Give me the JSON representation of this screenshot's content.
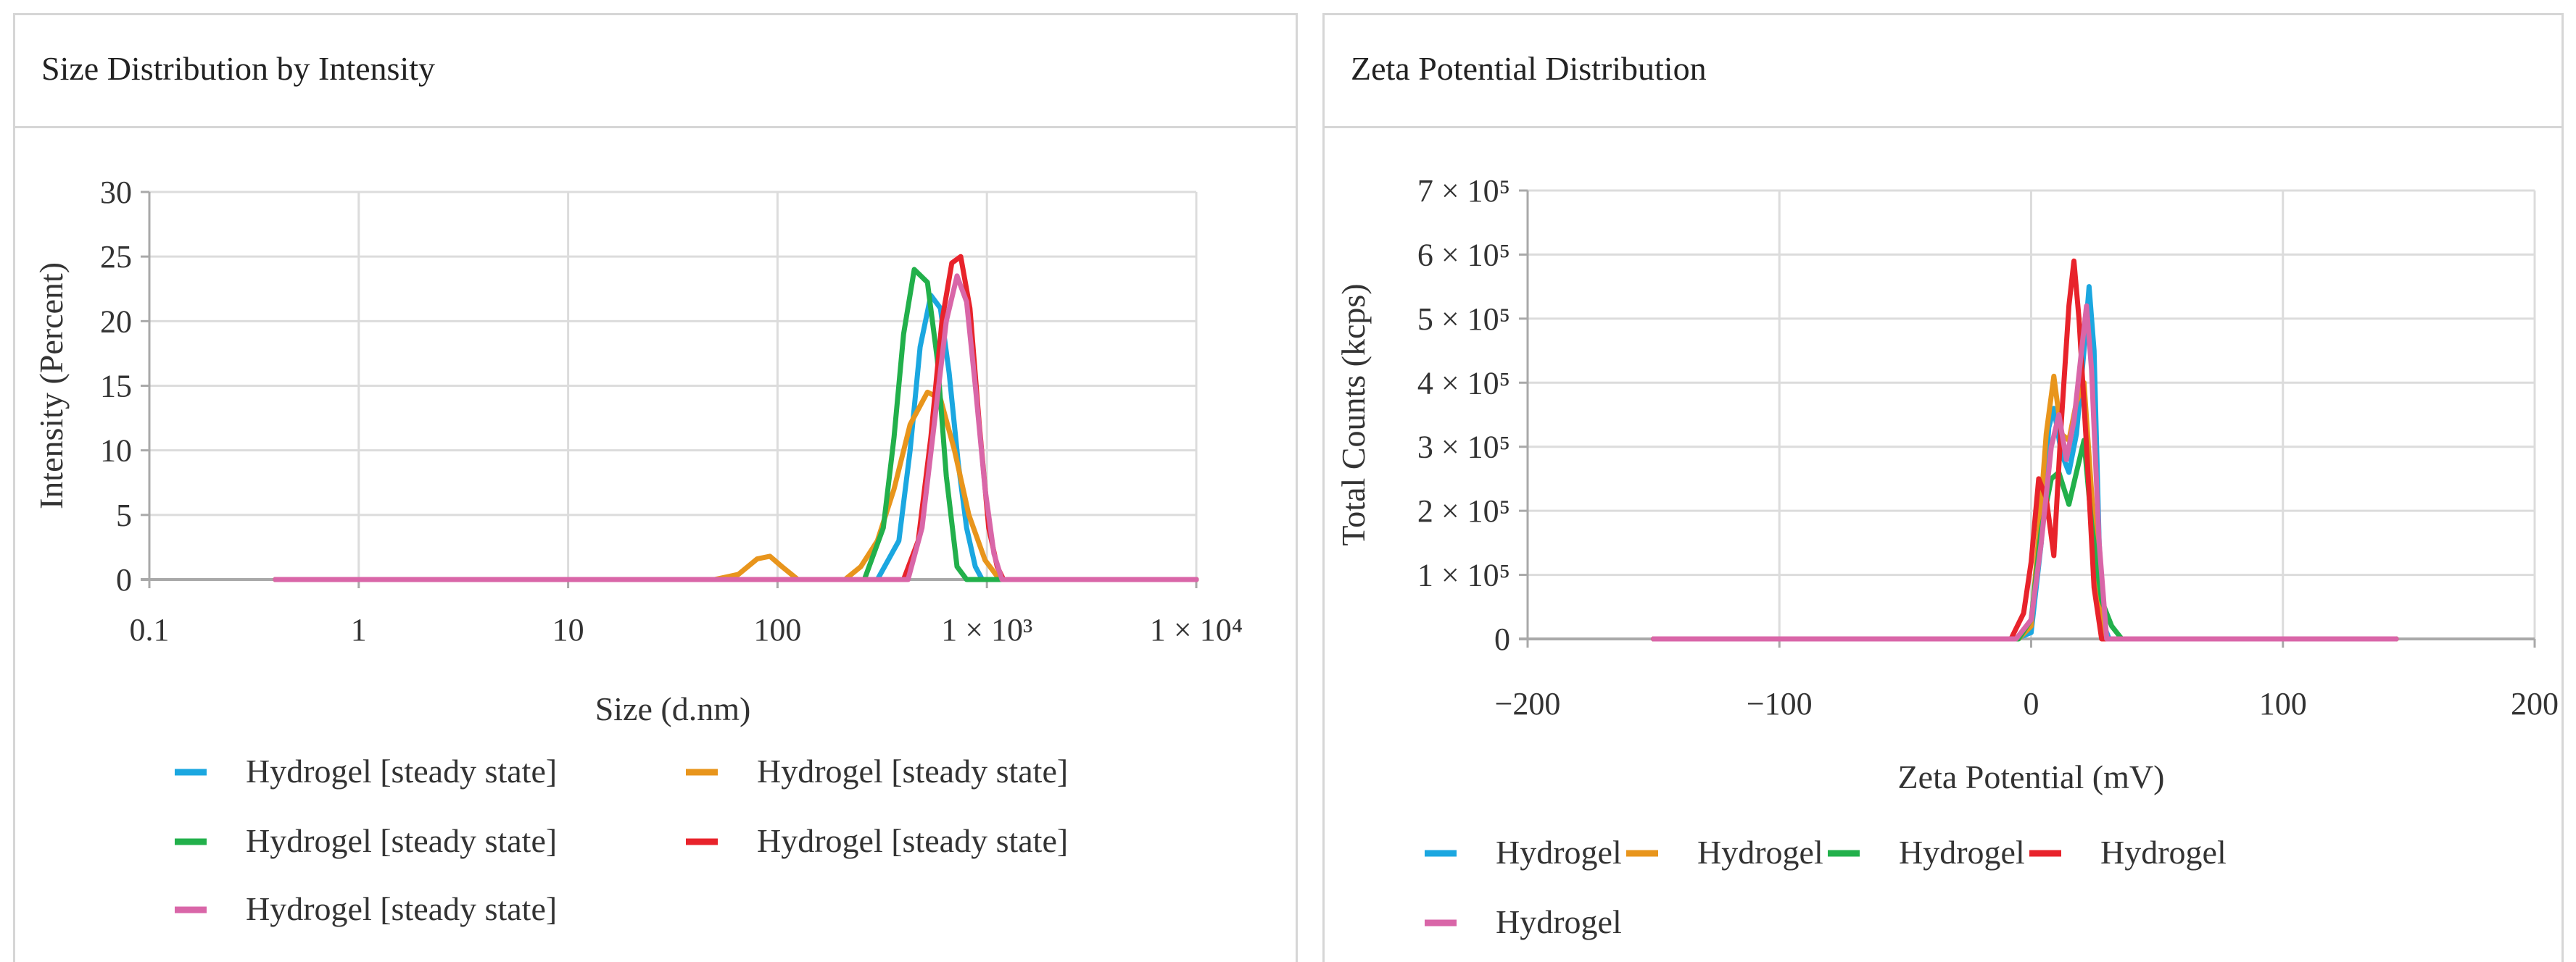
{
  "charts": [
    {
      "panel_title": "Size Distribution by Intensity",
      "chart_data": {
        "type": "line",
        "title": "Size Distribution by Intensity",
        "xlabel": "Size (d.nm)",
        "ylabel": "Intensity (Percent)",
        "x_scale": "log",
        "xlim": [
          0.1,
          10000
        ],
        "ylim": [
          0,
          30
        ],
        "x_ticks": [
          0.1,
          1,
          10,
          100,
          1000,
          10000
        ],
        "x_tick_labels": [
          "0.1",
          "1",
          "10",
          "100",
          "1 × 10³",
          "1 × 10⁴"
        ],
        "y_ticks": [
          0,
          5,
          10,
          15,
          20,
          25,
          30
        ],
        "y_tick_labels": [
          "0",
          "5",
          "10",
          "15",
          "20",
          "25",
          "30"
        ],
        "grid": true,
        "legend_position": "bottom",
        "series": [
          {
            "name": "Hydrogel [steady state]",
            "color": "#1ba7e0",
            "points": [
              [
                0.4,
                0
              ],
              [
                300,
                0
              ],
              [
                380,
                3
              ],
              [
                430,
                10
              ],
              [
                480,
                18
              ],
              [
                540,
                22
              ],
              [
                600,
                21
              ],
              [
                660,
                16
              ],
              [
                730,
                9
              ],
              [
                800,
                4
              ],
              [
                880,
                1
              ],
              [
                950,
                0
              ],
              [
                10000,
                0
              ]
            ]
          },
          {
            "name": "Hydrogel [steady state]",
            "color": "#e8951c",
            "points": [
              [
                0.4,
                0
              ],
              [
                50,
                0
              ],
              [
                65,
                0.4
              ],
              [
                80,
                1.6
              ],
              [
                92,
                1.8
              ],
              [
                105,
                1
              ],
              [
                125,
                0
              ],
              [
                210,
                0
              ],
              [
                250,
                1
              ],
              [
                300,
                3
              ],
              [
                360,
                7
              ],
              [
                430,
                12
              ],
              [
                520,
                14.5
              ],
              [
                600,
                14
              ],
              [
                700,
                10
              ],
              [
                820,
                5
              ],
              [
                980,
                1.5
              ],
              [
                1150,
                0
              ],
              [
                10000,
                0
              ]
            ]
          },
          {
            "name": "Hydrogel [steady state]",
            "color": "#22b04b",
            "points": [
              [
                0.4,
                0
              ],
              [
                260,
                0
              ],
              [
                320,
                4
              ],
              [
                360,
                11
              ],
              [
                400,
                19
              ],
              [
                450,
                24
              ],
              [
                520,
                23
              ],
              [
                580,
                17
              ],
              [
                640,
                8
              ],
              [
                720,
                1
              ],
              [
                800,
                0
              ],
              [
                10000,
                0
              ]
            ]
          },
          {
            "name": "Hydrogel [steady state]",
            "color": "#e8232b",
            "points": [
              [
                0.4,
                0
              ],
              [
                400,
                0
              ],
              [
                470,
                3
              ],
              [
                540,
                11
              ],
              [
                610,
                20
              ],
              [
                680,
                24.5
              ],
              [
                750,
                25
              ],
              [
                830,
                21
              ],
              [
                920,
                12
              ],
              [
                1020,
                4
              ],
              [
                1120,
                1
              ],
              [
                1200,
                0
              ],
              [
                10000,
                0
              ]
            ]
          },
          {
            "name": "Hydrogel [steady state]",
            "color": "#d966a8",
            "points": [
              [
                0.4,
                0
              ],
              [
                420,
                0
              ],
              [
                490,
                4
              ],
              [
                560,
                12
              ],
              [
                640,
                20
              ],
              [
                720,
                23.5
              ],
              [
                800,
                21.5
              ],
              [
                880,
                15
              ],
              [
                980,
                7
              ],
              [
                1080,
                2
              ],
              [
                1180,
                0
              ],
              [
                10000,
                0
              ]
            ]
          }
        ]
      }
    },
    {
      "panel_title": "Zeta Potential Distribution",
      "chart_data": {
        "type": "line",
        "title": "Zeta Potential Distribution",
        "xlabel": "Zeta Potential (mV)",
        "ylabel": "Total Counts (kcps)",
        "xlim": [
          -200,
          200
        ],
        "ylim": [
          0,
          700000
        ],
        "x_ticks": [
          -200,
          -100,
          0,
          100,
          200
        ],
        "x_tick_labels": [
          "−200",
          "−100",
          "0",
          "100",
          "200"
        ],
        "y_ticks": [
          0,
          100000,
          200000,
          300000,
          400000,
          500000,
          600000,
          700000
        ],
        "y_tick_labels": [
          "0",
          "1 × 10⁵",
          "2 × 10⁵",
          "3 × 10⁵",
          "4 × 10⁵",
          "5 × 10⁵",
          "6 × 10⁵",
          "7 × 10⁵"
        ],
        "grid": true,
        "legend_position": "bottom",
        "series": [
          {
            "name": "Hydrogel",
            "color": "#1ba7e0",
            "points": [
              [
                -150,
                0
              ],
              [
                -6,
                0
              ],
              [
                0,
                10000
              ],
              [
                4,
                150000
              ],
              [
                7,
                330000
              ],
              [
                9,
                360000
              ],
              [
                12,
                290000
              ],
              [
                15,
                260000
              ],
              [
                18,
                320000
              ],
              [
                21,
                450000
              ],
              [
                23,
                550000
              ],
              [
                25,
                450000
              ],
              [
                27,
                150000
              ],
              [
                29,
                20000
              ],
              [
                31,
                0
              ],
              [
                145,
                0
              ]
            ]
          },
          {
            "name": "Hydrogel",
            "color": "#e8951c",
            "points": [
              [
                -150,
                0
              ],
              [
                -5,
                0
              ],
              [
                0,
                20000
              ],
              [
                3,
                160000
              ],
              [
                6,
                320000
              ],
              [
                9,
                410000
              ],
              [
                12,
                320000
              ],
              [
                15,
                310000
              ],
              [
                18,
                370000
              ],
              [
                21,
                400000
              ],
              [
                24,
                230000
              ],
              [
                27,
                50000
              ],
              [
                30,
                0
              ],
              [
                145,
                0
              ]
            ]
          },
          {
            "name": "Hydrogel",
            "color": "#22b04b",
            "points": [
              [
                -150,
                0
              ],
              [
                -5,
                0
              ],
              [
                0,
                30000
              ],
              [
                4,
                170000
              ],
              [
                8,
                250000
              ],
              [
                11,
                260000
              ],
              [
                15,
                210000
              ],
              [
                18,
                260000
              ],
              [
                21,
                310000
              ],
              [
                24,
                180000
              ],
              [
                28,
                60000
              ],
              [
                32,
                20000
              ],
              [
                36,
                0
              ],
              [
                145,
                0
              ]
            ]
          },
          {
            "name": "Hydrogel",
            "color": "#e8232b",
            "points": [
              [
                -150,
                0
              ],
              [
                -8,
                0
              ],
              [
                -3,
                40000
              ],
              [
                0,
                120000
              ],
              [
                3,
                250000
              ],
              [
                6,
                220000
              ],
              [
                9,
                130000
              ],
              [
                12,
                340000
              ],
              [
                15,
                520000
              ],
              [
                17,
                590000
              ],
              [
                19,
                500000
              ],
              [
                22,
                300000
              ],
              [
                25,
                80000
              ],
              [
                28,
                0
              ],
              [
                145,
                0
              ]
            ]
          },
          {
            "name": "Hydrogel",
            "color": "#d966a8",
            "points": [
              [
                -150,
                0
              ],
              [
                -6,
                0
              ],
              [
                0,
                30000
              ],
              [
                4,
                150000
              ],
              [
                8,
                300000
              ],
              [
                11,
                350000
              ],
              [
                14,
                280000
              ],
              [
                17,
                340000
              ],
              [
                20,
                450000
              ],
              [
                22,
                520000
              ],
              [
                24,
                420000
              ],
              [
                27,
                150000
              ],
              [
                30,
                0
              ],
              [
                145,
                0
              ]
            ]
          }
        ]
      }
    }
  ]
}
